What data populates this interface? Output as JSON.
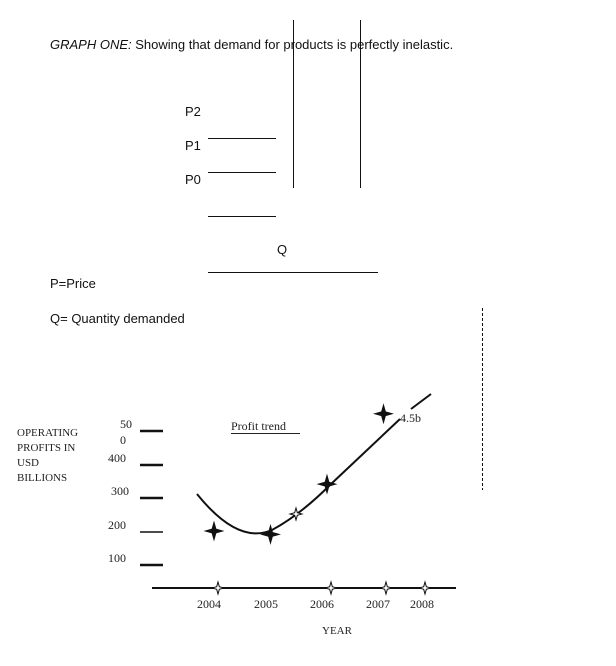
{
  "graph_one": {
    "title_prefix": "GRAPH ONE:",
    "title_text": " Showing that demand for products is perfectly inelastic.",
    "price_labels": [
      "P2",
      "P1",
      "P0"
    ],
    "quantity_label": "Q",
    "legend_p": "P=Price",
    "legend_q": "Q= Quantity demanded"
  },
  "chart_data": {
    "type": "line",
    "title": "Profit trend",
    "ylabel": "OPERATING PROFITS IN USD BILLIONS",
    "ylabel_lines": [
      "OPERATING",
      "PROFITS IN",
      "USD",
      "BILLIONS"
    ],
    "xlabel": "YEAR",
    "y_ticks": [
      "50\n0",
      "400",
      "300",
      "200",
      "100"
    ],
    "y_tick_top_parts": [
      "50",
      "0"
    ],
    "y_tick_labels": [
      "400",
      "300",
      "200",
      "100"
    ],
    "x_ticks": [
      "2004",
      "2005",
      "2006",
      "2007",
      "2008"
    ],
    "annotation": "4.5b",
    "points": [
      {
        "year": 2004,
        "value": 200
      },
      {
        "year": 2005,
        "value": 190
      },
      {
        "year": 2006,
        "value": 340
      },
      {
        "year": 2007,
        "value": 550
      }
    ]
  }
}
